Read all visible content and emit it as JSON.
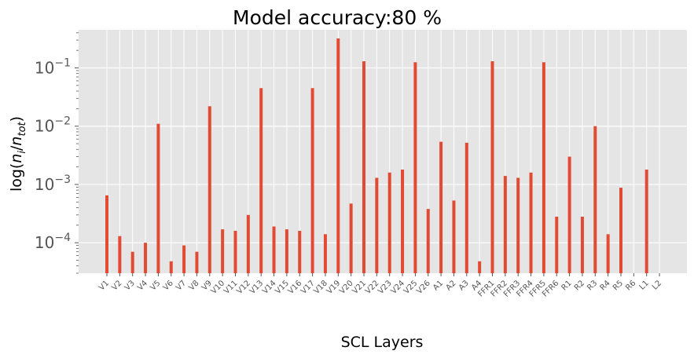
{
  "chart_data": {
    "type": "bar",
    "title": "Model accuracy:80 %",
    "xlabel": "SCL Layers",
    "ylabel": "log(n_i/n_tot)",
    "yscale": "log",
    "ylim": [
      3e-05,
      0.45
    ],
    "yticks": [
      {
        "value": 0.0001,
        "base": "10",
        "exp": "−4"
      },
      {
        "value": 0.001,
        "base": "10",
        "exp": "−3"
      },
      {
        "value": 0.01,
        "base": "10",
        "exp": "−2"
      },
      {
        "value": 0.1,
        "base": "10",
        "exp": "−1"
      }
    ],
    "grid": true,
    "colors": {
      "bar": "#E24A33",
      "background": "#E5E5E5",
      "grid": "#FFFFFF"
    },
    "categories": [
      "V1",
      "V2",
      "V3",
      "V4",
      "V5",
      "V6",
      "V7",
      "V8",
      "V9",
      "V10",
      "V11",
      "V12",
      "V13",
      "V14",
      "V15",
      "V16",
      "V17",
      "V18",
      "V19",
      "V20",
      "V21",
      "V22",
      "V23",
      "V24",
      "V25",
      "V26",
      "A1",
      "A2",
      "A3",
      "A4",
      "FFR1",
      "FFR2",
      "FFR3",
      "FFR4",
      "FFR5",
      "FFR6",
      "R1",
      "R2",
      "R3",
      "R4",
      "R5",
      "R6",
      "L1",
      "L2"
    ],
    "values": [
      0.00065,
      0.00013,
      7e-05,
      0.0001,
      0.011,
      4.8e-05,
      9e-05,
      7e-05,
      0.022,
      0.00017,
      0.00016,
      0.0003,
      0.045,
      0.00019,
      0.00017,
      0.00016,
      0.045,
      0.00014,
      0.32,
      0.00047,
      0.13,
      0.0013,
      0.0016,
      0.0018,
      0.125,
      0.00038,
      0.0054,
      0.00053,
      0.0052,
      4.8e-05,
      0.13,
      0.0014,
      0.0013,
      0.0016,
      0.125,
      0.00028,
      0.003,
      0.00028,
      0.01,
      0.00014,
      0.00088,
      null,
      0.0018,
      null
    ]
  }
}
